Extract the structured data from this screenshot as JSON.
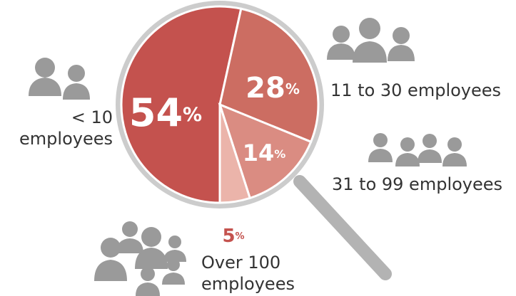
{
  "chart_data": {
    "type": "pie",
    "categories": [
      "< 10 employees",
      "11 to 30 employees",
      "31 to 99 employees",
      "Over 100 employees"
    ],
    "values": [
      54,
      28,
      14,
      5
    ],
    "value_labels": [
      "54%",
      "28%",
      "14%",
      "5%"
    ],
    "colors": [
      "#c4524e",
      "#cc6d62",
      "#da8c82",
      "#ebb4aa"
    ]
  }
}
